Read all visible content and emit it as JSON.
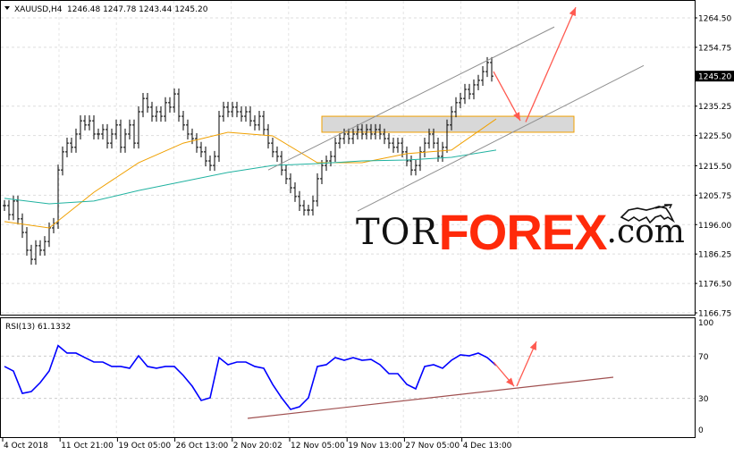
{
  "header": {
    "symbol": "XAUUSD,H4",
    "ohlc": "1246.48 1247.78 1243.44 1245.20"
  },
  "rsi_label": "RSI(13) 61.1332",
  "logo": {
    "tor": "TOR",
    "forex": "FOREX",
    "com": ".com"
  },
  "colors": {
    "bars": "#000000",
    "ma_fast": "#f0a000",
    "ma_slow": "#20b2a0",
    "channel": "#909090",
    "zone_fill": "#d8d8d8",
    "zone_border": "#f0a000",
    "arrows": "#ff5a50",
    "rsi": "#0000ff",
    "rsi_trend": "#a05050",
    "price_tag_bg": "#000000"
  },
  "chart_data": [
    {
      "type": "ohlc",
      "title": "XAUUSD,H4",
      "price_axis": {
        "ticks": [
          "1264.50",
          "1254.75",
          "1245.20",
          "1235.25",
          "1225.50",
          "1215.50",
          "1205.75",
          "1196.00",
          "1186.25",
          "1176.50",
          "1166.75"
        ],
        "current": "1245.20",
        "range": [
          1166.75,
          1264.5
        ]
      },
      "x_ticks": [
        "4 Oct 2018",
        "11 Oct 21:00",
        "19 Oct 05:00",
        "26 Oct 13:00",
        "2 Nov 20:02",
        "12 Nov 05:00",
        "19 Nov 13:00",
        "27 Nov 05:00",
        "4 Dec 13:00"
      ],
      "closes": [
        1202.3,
        1199.3,
        1203.8,
        1197.9,
        1193.4,
        1187.5,
        1184.5,
        1189.0,
        1187.5,
        1190.4,
        1194.9,
        1196.4,
        1214.1,
        1220.1,
        1223.0,
        1221.6,
        1226.0,
        1230.4,
        1229.0,
        1230.4,
        1226.0,
        1226.0,
        1227.5,
        1223.0,
        1226.0,
        1229.0,
        1221.6,
        1226.0,
        1229.0,
        1223.0,
        1233.4,
        1237.8,
        1234.9,
        1231.9,
        1233.4,
        1231.9,
        1236.4,
        1234.9,
        1239.3,
        1231.9,
        1229.0,
        1226.0,
        1224.5,
        1221.6,
        1220.1,
        1217.1,
        1215.6,
        1218.6,
        1231.9,
        1234.9,
        1233.4,
        1234.9,
        1233.4,
        1231.9,
        1233.4,
        1230.4,
        1229.0,
        1231.9,
        1227.5,
        1223.0,
        1220.1,
        1218.6,
        1214.1,
        1211.2,
        1208.2,
        1205.3,
        1202.3,
        1200.8,
        1200.8,
        1203.8,
        1211.2,
        1215.6,
        1217.1,
        1218.6,
        1223.0,
        1224.5,
        1226.0,
        1224.5,
        1226.0,
        1227.5,
        1226.0,
        1227.5,
        1226.0,
        1227.5,
        1226.0,
        1224.5,
        1223.0,
        1221.6,
        1223.0,
        1220.1,
        1217.1,
        1214.1,
        1215.6,
        1220.1,
        1223.0,
        1226.0,
        1223.0,
        1218.6,
        1221.6,
        1229.0,
        1233.4,
        1236.4,
        1237.8,
        1240.8,
        1239.3,
        1242.3,
        1243.8,
        1246.7,
        1249.7,
        1245.2
      ],
      "ma_fast_every10": [
        1197.0,
        1194.9,
        1206.7,
        1216.5,
        1223.0,
        1226.6,
        1225.4,
        1216.5,
        1216.5,
        1219.5,
        1220.7,
        1231.0
      ],
      "ma_slow_every10": [
        1204.7,
        1202.9,
        1203.8,
        1207.3,
        1210.3,
        1213.3,
        1215.6,
        1216.2,
        1217.1,
        1217.4,
        1218.3,
        1220.7
      ],
      "channel_lines": [
        {
          "from": [
            59,
            1214.1
          ],
          "to": [
            123,
            1261.5
          ]
        },
        {
          "from": [
            79,
            1200.5
          ],
          "to": [
            143,
            1248.7
          ]
        }
      ],
      "zone": {
        "from_bar": 71,
        "to_bar": 127.4,
        "top": 1231.9,
        "bottom": 1226.6
      },
      "arrows": [
        {
          "from": [
            109.4,
            1246.7
          ],
          "to": [
            115.4,
            1230.4
          ]
        },
        {
          "from": [
            116.6,
            1230.0
          ],
          "to": [
            127.8,
            1268.0
          ]
        }
      ]
    },
    {
      "type": "line",
      "title": "RSI(13) 61.1332",
      "y_ticks": [
        "100",
        "70",
        "30",
        "0"
      ],
      "ylim": [
        0,
        100
      ],
      "levels": [
        70,
        30
      ],
      "values_every2bars": [
        60.2,
        55.9,
        34.7,
        36.4,
        44.9,
        55.9,
        80.0,
        72.9,
        72.9,
        68.6,
        64.4,
        64.4,
        60.2,
        60.2,
        58.5,
        70.3,
        60.2,
        58.5,
        60.2,
        60.2,
        51.7,
        41.5,
        28.0,
        30.5,
        68.6,
        61.9,
        64.4,
        64.4,
        60.2,
        58.5,
        43.2,
        30.5,
        19.5,
        22.0,
        30.5,
        60.2,
        61.9,
        68.6,
        66.1,
        68.6,
        66.1,
        66.9,
        61.9,
        53.4,
        53.4,
        43.2,
        39.0,
        60.2,
        61.9,
        58.5,
        66.1,
        71.2,
        70.3,
        72.9,
        68.6,
        61.1
      ],
      "trendline": {
        "from": [
          54.4,
          11.0
        ],
        "to": [
          136.2,
          50.0
        ]
      },
      "arrows": [
        {
          "from": [
            109.4,
            64.4
          ],
          "to": [
            114,
            41.5
          ]
        },
        {
          "from": [
            114.6,
            41.5
          ],
          "to": [
            119,
            83.9
          ]
        }
      ]
    }
  ]
}
